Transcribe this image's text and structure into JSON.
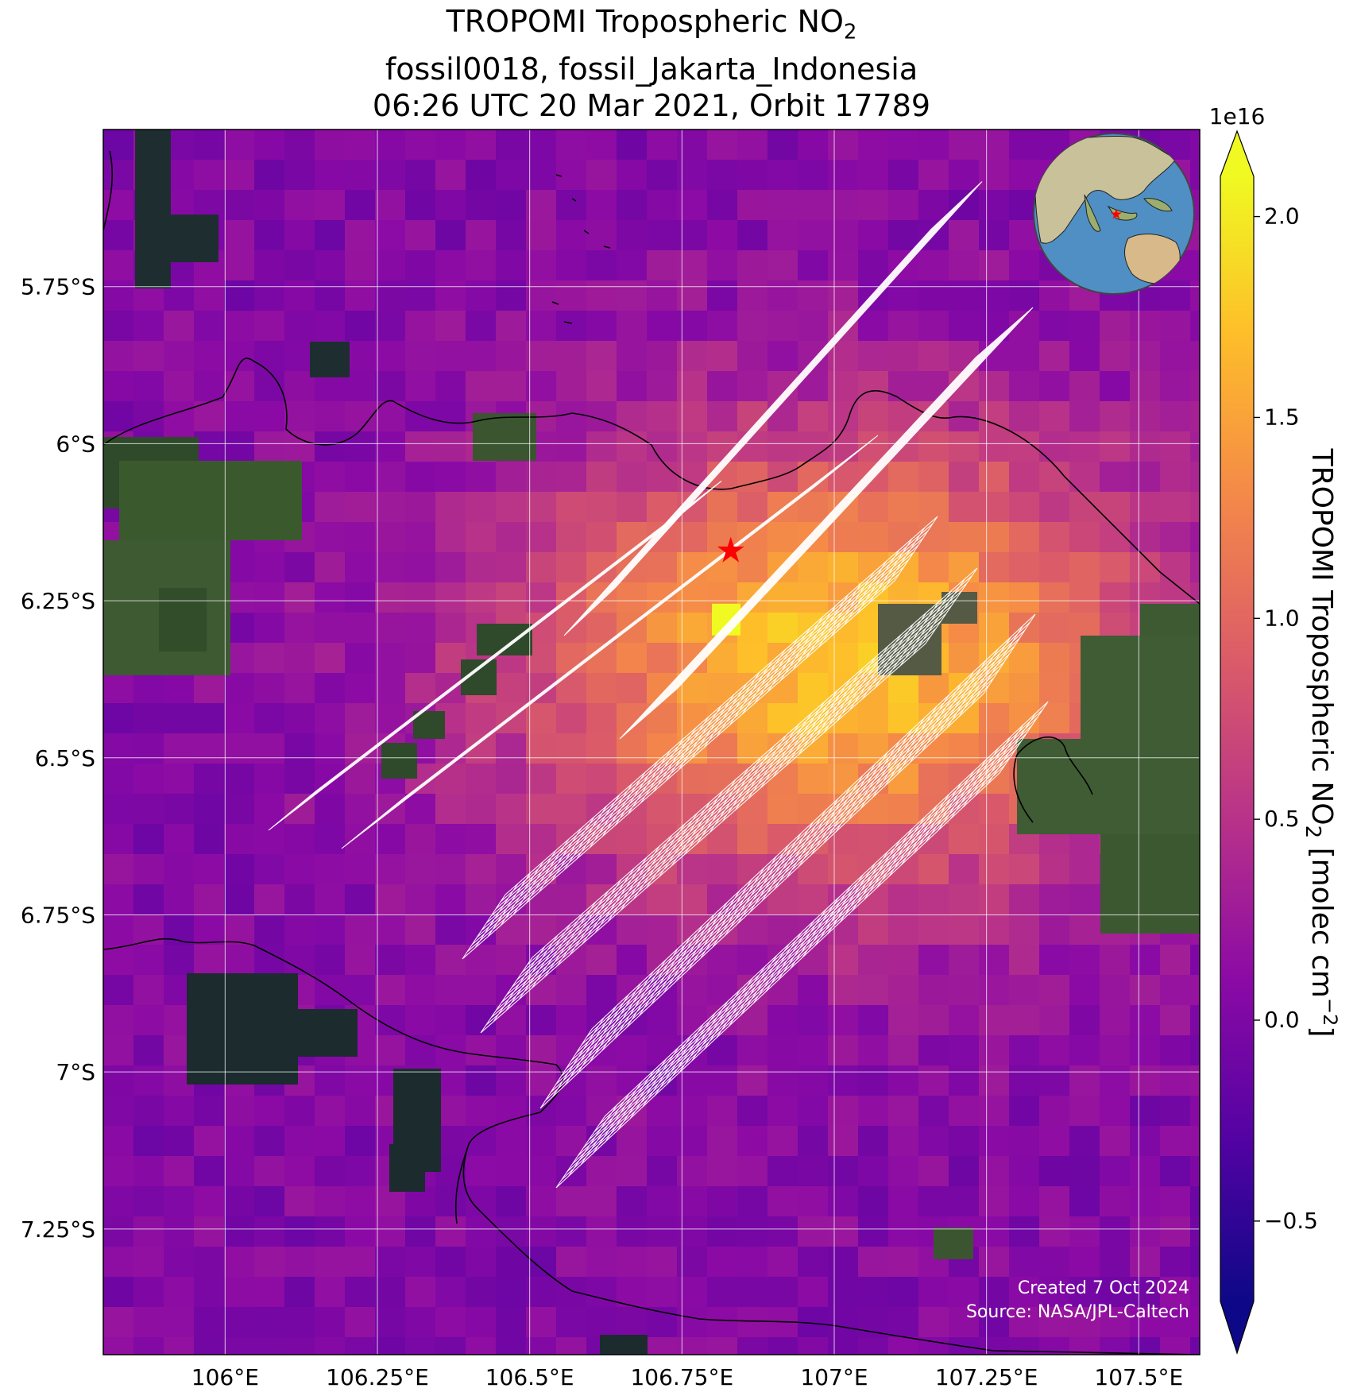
{
  "title": {
    "line1_main": "TROPOMI Tropospheric NO",
    "line1_sub": "2",
    "line2": "fossil0018, fossil_Jakarta_Indonesia",
    "line3": "06:26 UTC 20 Mar 2021, Orbit 17789"
  },
  "map": {
    "lon_range": [
      105.8,
      107.6
    ],
    "lat_range": [
      -7.45,
      -5.5
    ],
    "lon_ticks": [
      {
        "value": 106.0,
        "label": "106°E"
      },
      {
        "value": 106.25,
        "label": "106.25°E"
      },
      {
        "value": 106.5,
        "label": "106.5°E"
      },
      {
        "value": 106.75,
        "label": "106.75°E"
      },
      {
        "value": 107.0,
        "label": "107°E"
      },
      {
        "value": 107.25,
        "label": "107.25°E"
      },
      {
        "value": 107.5,
        "label": "107.5°E"
      }
    ],
    "lat_ticks": [
      {
        "value": -5.75,
        "label": "5.75°S"
      },
      {
        "value": -6.0,
        "label": "6°S"
      },
      {
        "value": -6.25,
        "label": "6.25°S"
      },
      {
        "value": -6.5,
        "label": "6.5°S"
      },
      {
        "value": -6.75,
        "label": "6.75°S"
      },
      {
        "value": -7.0,
        "label": "7°S"
      },
      {
        "value": -7.25,
        "label": "7.25°S"
      }
    ],
    "source_marker": {
      "lon": 106.83,
      "lat": -6.17,
      "color": "#ff0000",
      "icon": "star-icon"
    },
    "background_color": "#8a10b0",
    "grid_color": "#ffffff"
  },
  "colorbar": {
    "multiplier": "1e16",
    "label_main": "TROPOMI Tropospheric NO",
    "label_sub": "2",
    "label_units_open": " [molec cm",
    "label_units_sup": "−2",
    "label_units_close": "]",
    "range": [
      -0.7,
      2.1
    ],
    "ticks": [
      {
        "value": -0.5,
        "label": "−0.5"
      },
      {
        "value": 0.0,
        "label": "0.0"
      },
      {
        "value": 0.5,
        "label": "0.5"
      },
      {
        "value": 1.0,
        "label": "1.0"
      },
      {
        "value": 1.5,
        "label": "1.5"
      },
      {
        "value": 2.0,
        "label": "2.0"
      }
    ],
    "colors": [
      "#0d0887",
      "#5302a3",
      "#8b0aa5",
      "#b83289",
      "#db5c68",
      "#f48849",
      "#febd2a",
      "#f0f921"
    ]
  },
  "credit": {
    "created": "Created 7 Oct 2024",
    "source": "Source: NASA/JPL-Caltech"
  },
  "inset": {
    "description_icon": "globe-icon",
    "marker_color": "#ff0000"
  }
}
